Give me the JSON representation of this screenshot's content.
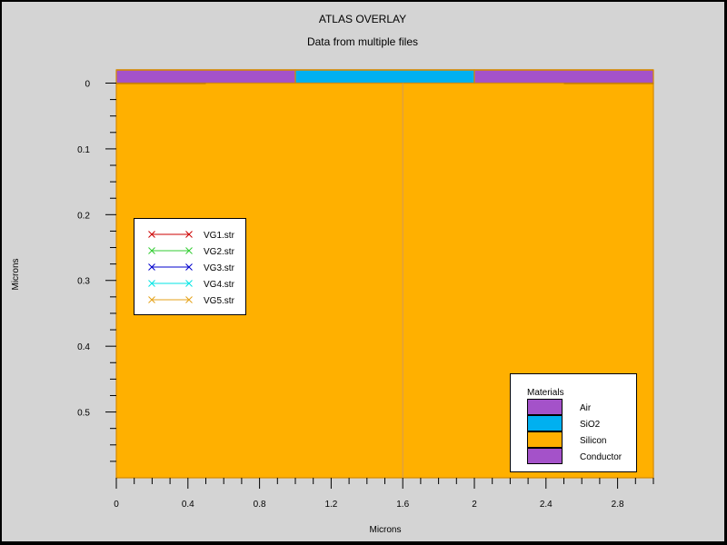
{
  "chart_data": {
    "type": "area",
    "title": "ATLAS OVERLAY",
    "subtitle": "Data from multiple files",
    "xlabel": "Microns",
    "ylabel": "Microns",
    "xlim": [
      0,
      3.0
    ],
    "ylim": [
      -0.02,
      0.6
    ],
    "y_inverted": true,
    "x_ticks": [
      0,
      0.4,
      0.8,
      1.2,
      1.6,
      2,
      2.4,
      2.8
    ],
    "x_tick_labels": [
      "0",
      "0.4",
      "0.8",
      "1.2",
      "1.6",
      "2",
      "2.4",
      "2.8"
    ],
    "y_ticks": [
      0,
      0.1,
      0.2,
      0.3,
      0.4,
      0.5
    ],
    "y_tick_labels": [
      "0",
      "0.1",
      "0.2",
      "0.3",
      "0.4",
      "0.5"
    ],
    "regions": [
      {
        "material": "Silicon",
        "x": [
          0,
          3.0
        ],
        "y": [
          0,
          0.6
        ]
      },
      {
        "material": "Conductor",
        "x": [
          0,
          1.0
        ],
        "y": [
          -0.02,
          0
        ]
      },
      {
        "material": "SiO2",
        "x": [
          1.0,
          2.0
        ],
        "y": [
          -0.02,
          0
        ]
      },
      {
        "material": "Conductor",
        "x": [
          2.0,
          3.0
        ],
        "y": [
          -0.02,
          0
        ]
      }
    ],
    "junction_lines": [
      {
        "x": [
          0,
          0.5
        ],
        "y": 0.0
      },
      {
        "x": [
          2.5,
          3.0
        ],
        "y": 0.0
      }
    ],
    "center_line_x": 1.6,
    "series_legend": {
      "entries": [
        {
          "name": "VG1.str",
          "color": "#cc0000"
        },
        {
          "name": "VG2.str",
          "color": "#33cc33"
        },
        {
          "name": "VG3.str",
          "color": "#0000cc"
        },
        {
          "name": "VG4.str",
          "color": "#00e5e5"
        },
        {
          "name": "VG5.str",
          "color": "#e5a21a"
        }
      ]
    },
    "materials_legend": {
      "title": "Materials",
      "entries": [
        {
          "name": "Air",
          "color": "#a452c9"
        },
        {
          "name": "SiO2",
          "color": "#00b0f0"
        },
        {
          "name": "Silicon",
          "color": "#ffb000"
        },
        {
          "name": "Conductor",
          "color": "#a452c9"
        }
      ]
    },
    "colors": {
      "background": "#d4d4d4",
      "silicon": "#ffb000",
      "sio2": "#00b0f0",
      "conductor": "#a452c9",
      "center_line": "#d49a5a",
      "junction": "#d48a00"
    }
  }
}
